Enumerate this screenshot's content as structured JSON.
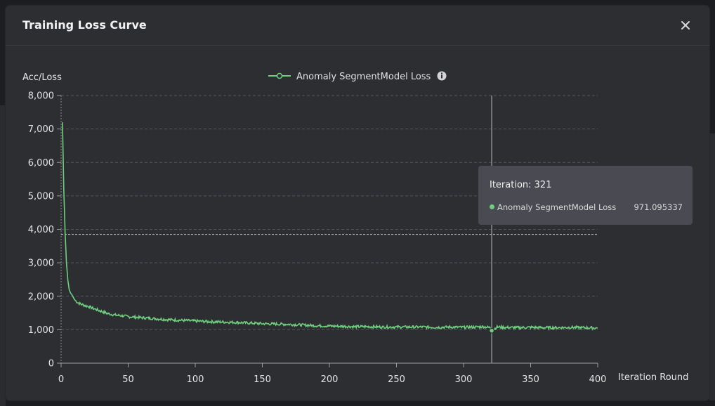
{
  "modal": {
    "title": "Training Loss Curve",
    "close_icon": "close-icon"
  },
  "colors": {
    "series": "#6fcf7f",
    "background": "#2d2e32",
    "tooltip_bg": "#4a4b52"
  },
  "tooltip": {
    "title": "Iteration: 321",
    "series_name": "Anomaly SegmentModel Loss",
    "value": "971.095337"
  },
  "chart_data": {
    "type": "line",
    "ylabel": "Acc/Loss",
    "xlabel": "Iteration Round",
    "xlim": [
      0,
      400
    ],
    "ylim": [
      0,
      8000
    ],
    "x_ticks": [
      0,
      50,
      100,
      150,
      200,
      250,
      300,
      350,
      400
    ],
    "x_tick_labels": [
      "0",
      "50",
      "100",
      "150",
      "200",
      "250",
      "300",
      "350",
      "400"
    ],
    "y_ticks": [
      0,
      1000,
      2000,
      3000,
      4000,
      5000,
      6000,
      7000,
      8000
    ],
    "y_tick_labels": [
      "0",
      "1,000",
      "2,000",
      "3,000",
      "4,000",
      "5,000",
      "6,000",
      "7,000",
      "8,000"
    ],
    "grid": true,
    "legend_position": "top-center",
    "legend_icon": "info-icon",
    "mark_line_y": 3850,
    "hover_x": 321,
    "hover_y": 971.095337,
    "series": [
      {
        "name": "Anomaly SegmentModel Loss",
        "x": [
          1,
          2,
          3,
          4,
          5,
          6,
          7,
          8,
          10,
          12,
          15,
          18,
          20,
          25,
          30,
          35,
          40,
          45,
          50,
          60,
          70,
          80,
          90,
          100,
          110,
          120,
          130,
          140,
          150,
          160,
          170,
          180,
          190,
          200,
          210,
          220,
          230,
          240,
          250,
          260,
          270,
          280,
          290,
          300,
          310,
          315,
          320,
          321,
          322,
          325,
          330,
          340,
          350,
          360,
          370,
          380,
          390,
          400
        ],
        "y": [
          7200,
          5200,
          3900,
          3000,
          2500,
          2200,
          2100,
          2050,
          1900,
          1820,
          1760,
          1720,
          1700,
          1620,
          1550,
          1480,
          1440,
          1420,
          1390,
          1360,
          1330,
          1300,
          1280,
          1260,
          1240,
          1230,
          1220,
          1200,
          1180,
          1170,
          1160,
          1140,
          1120,
          1110,
          1100,
          1090,
          1090,
          1080,
          1080,
          1080,
          1080,
          1070,
          1080,
          1070,
          1080,
          1090,
          1060,
          971,
          1000,
          1080,
          1070,
          1060,
          1070,
          1060,
          1060,
          1070,
          1060,
          1050
        ]
      }
    ]
  }
}
